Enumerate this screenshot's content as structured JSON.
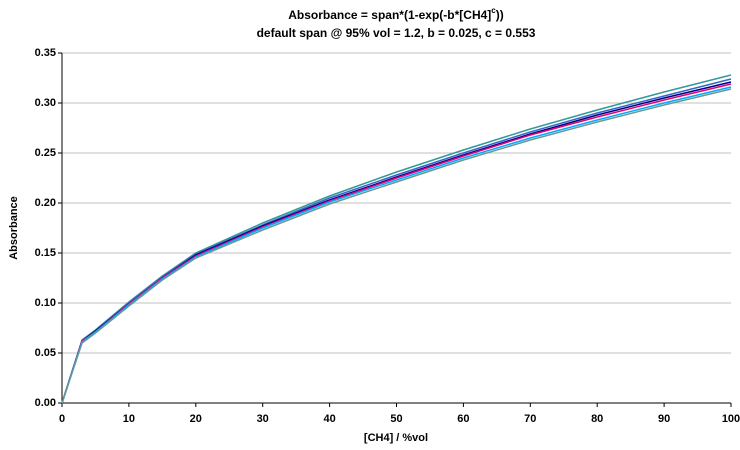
{
  "chart_data": {
    "type": "line",
    "title": [
      "Absorbance = span*(1-exp(-b*[CH4]",
      "c",
      "))"
    ],
    "subtitle": "default span @ 95% vol = 1.2, b = 0.025, c = 0.553",
    "xlabel": "[CH4] / %vol",
    "ylabel": "Absorbance",
    "x": [
      0,
      3,
      5,
      10,
      15,
      20,
      30,
      40,
      50,
      60,
      70,
      80,
      90,
      100
    ],
    "series": [
      {
        "color": "#339999",
        "values": [
          0,
          0.063,
          0.073,
          0.101,
          0.127,
          0.15,
          0.18,
          0.207,
          0.231,
          0.253,
          0.274,
          0.293,
          0.311,
          0.328
        ]
      },
      {
        "color": "#3366cc",
        "values": [
          0,
          0.062,
          0.072,
          0.1,
          0.126,
          0.149,
          0.178,
          0.205,
          0.228,
          0.25,
          0.271,
          0.29,
          0.307,
          0.324
        ]
      },
      {
        "color": "#000080",
        "values": [
          0,
          0.062,
          0.072,
          0.099,
          0.125,
          0.148,
          0.177,
          0.203,
          0.226,
          0.248,
          0.269,
          0.288,
          0.305,
          0.321
        ]
      },
      {
        "color": "#e0007a",
        "values": [
          0,
          0.062,
          0.071,
          0.099,
          0.125,
          0.147,
          0.176,
          0.202,
          0.225,
          0.247,
          0.268,
          0.286,
          0.303,
          0.319
        ]
      },
      {
        "color": "#00aaff",
        "values": [
          0,
          0.061,
          0.071,
          0.098,
          0.124,
          0.146,
          0.175,
          0.201,
          0.223,
          0.245,
          0.265,
          0.283,
          0.3,
          0.316
        ]
      },
      {
        "color": "#669999",
        "values": [
          0,
          0.06,
          0.07,
          0.097,
          0.123,
          0.145,
          0.173,
          0.199,
          0.221,
          0.243,
          0.263,
          0.281,
          0.298,
          0.314
        ]
      }
    ],
    "xlim": [
      0,
      100
    ],
    "xticks": [
      0,
      10,
      20,
      30,
      40,
      50,
      60,
      70,
      80,
      90,
      100
    ],
    "ylim": [
      0,
      0.35
    ],
    "yticks": [
      {
        "value": 0,
        "label": "0.00"
      },
      0.05,
      {
        "value": 0.1,
        "label": "0.10"
      },
      0.15,
      {
        "value": 0.2,
        "label": "0.20"
      },
      0.25,
      {
        "value": 0.3,
        "label": "0.30"
      },
      0.35
    ],
    "grid": true
  }
}
